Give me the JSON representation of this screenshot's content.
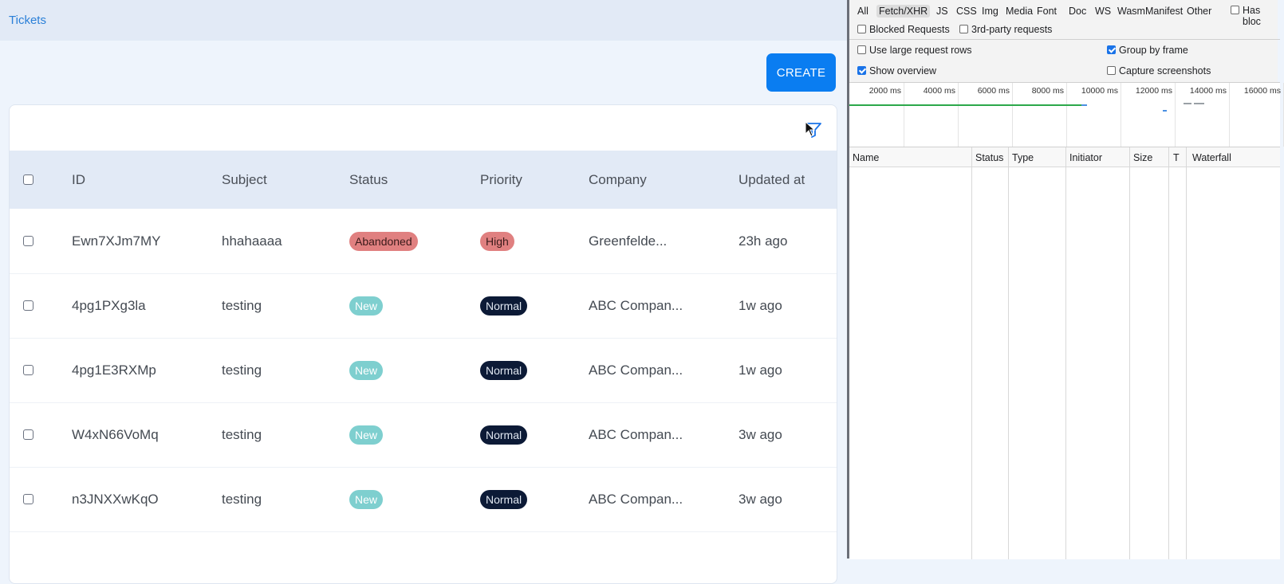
{
  "app": {
    "breadcrumb": "Tickets",
    "create_label": "CREATE",
    "columns": [
      "ID",
      "Subject",
      "Status",
      "Priority",
      "Company",
      "Updated at"
    ],
    "rows": [
      {
        "id": "Ewn7XJm7MY",
        "subject": "hhahaaaa",
        "status": "Abandoned",
        "priority": "High",
        "company": "Greenfelde...",
        "updated": "23h ago"
      },
      {
        "id": "4pg1PXg3la",
        "subject": "testing",
        "status": "New",
        "priority": "Normal",
        "company": "ABC Compan...",
        "updated": "1w ago"
      },
      {
        "id": "4pg1E3RXMp",
        "subject": "testing",
        "status": "New",
        "priority": "Normal",
        "company": "ABC Compan...",
        "updated": "1w ago"
      },
      {
        "id": "W4xN66VoMq",
        "subject": "testing",
        "status": "New",
        "priority": "Normal",
        "company": "ABC Compan...",
        "updated": "3w ago"
      },
      {
        "id": "n3JNXXwKqO",
        "subject": "testing",
        "status": "New",
        "priority": "Normal",
        "company": "ABC Compan...",
        "updated": "3w ago"
      }
    ],
    "colors": {
      "accent": "#0a7df1",
      "link": "#2b80d8",
      "header_bg": "#e2eaf6"
    }
  },
  "devtools": {
    "filter_tabs": [
      "All",
      "Fetch/XHR",
      "JS",
      "CSS",
      "Img",
      "Media",
      "Font",
      "Doc",
      "WS",
      "Wasm",
      "Manifest",
      "Other"
    ],
    "active_tab": "Fetch/XHR",
    "has_blocked_label": "Has bloc",
    "blocked_requests_label": "Blocked Requests",
    "third_party_label": "3rd-party requests",
    "large_rows_label": "Use large request rows",
    "group_by_frame_label": "Group by frame",
    "show_overview_label": "Show overview",
    "capture_screenshots_label": "Capture screenshots",
    "settings": {
      "blocked_requests": false,
      "third_party": false,
      "large_rows": false,
      "group_by_frame": true,
      "show_overview": true,
      "capture_screenshots": false,
      "has_blocked": false
    },
    "timeline_ticks": [
      "2000 ms",
      "4000 ms",
      "6000 ms",
      "8000 ms",
      "10000 ms",
      "12000 ms",
      "14000 ms",
      "16000 ms"
    ],
    "columns": [
      "Name",
      "Status",
      "Type",
      "Initiator",
      "Size",
      "T",
      "Waterfall"
    ]
  }
}
